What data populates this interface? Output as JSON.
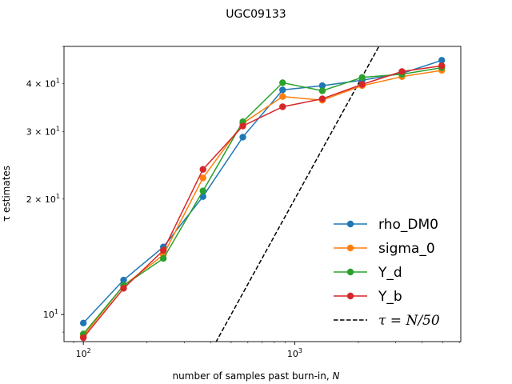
{
  "chart_data": {
    "type": "line",
    "title": "UGC09133",
    "xlabel": "number of samples past burn-in, N",
    "ylabel": "τ estimates",
    "xscale": "log",
    "yscale": "log",
    "xlim": [
      81,
      6100
    ],
    "ylim": [
      8.5,
      50
    ],
    "grid": false,
    "legend_position": "lower-right",
    "x_major_ticks": [
      {
        "value": 100,
        "base": "10",
        "exp": "2"
      },
      {
        "value": 1000,
        "base": "10",
        "exp": "3"
      }
    ],
    "y_major_ticks": [
      {
        "value": 10,
        "base": "10",
        "exp": "1"
      }
    ],
    "y_minor_labels": [
      {
        "value": 20,
        "coef": "2",
        "base": "10",
        "exp": "1"
      },
      {
        "value": 30,
        "coef": "3",
        "base": "10",
        "exp": "1"
      },
      {
        "value": 40,
        "coef": "4",
        "base": "10",
        "exp": "1"
      }
    ],
    "x": [
      100,
      155,
      239,
      368,
      568,
      876,
      1350,
      2083,
      3213,
      4957
    ],
    "series": [
      {
        "name": "rho_DM0",
        "color": "#1f77b4",
        "values": [
          9.5,
          12.3,
          15.0,
          20.3,
          29.0,
          38.5,
          39.5,
          40.8,
          42.5,
          46.0
        ]
      },
      {
        "name": "sigma_0",
        "color": "#ff7f0e",
        "values": [
          8.8,
          11.9,
          14.3,
          22.7,
          31.5,
          37.0,
          36.2,
          39.5,
          41.7,
          43.3
        ]
      },
      {
        "name": "Y_d",
        "color": "#2ca02c",
        "values": [
          8.9,
          11.9,
          14.0,
          21.0,
          31.8,
          40.2,
          38.3,
          41.5,
          42.3,
          44.0
        ]
      },
      {
        "name": "Y_b",
        "color": "#d62728",
        "values": [
          8.7,
          11.7,
          14.7,
          23.9,
          31.0,
          34.8,
          36.5,
          39.8,
          43.0,
          44.5
        ]
      }
    ],
    "reference_line": {
      "label_prefix": "τ = N/50",
      "divisor": 50,
      "color": "#000000",
      "style": "dashed"
    }
  }
}
